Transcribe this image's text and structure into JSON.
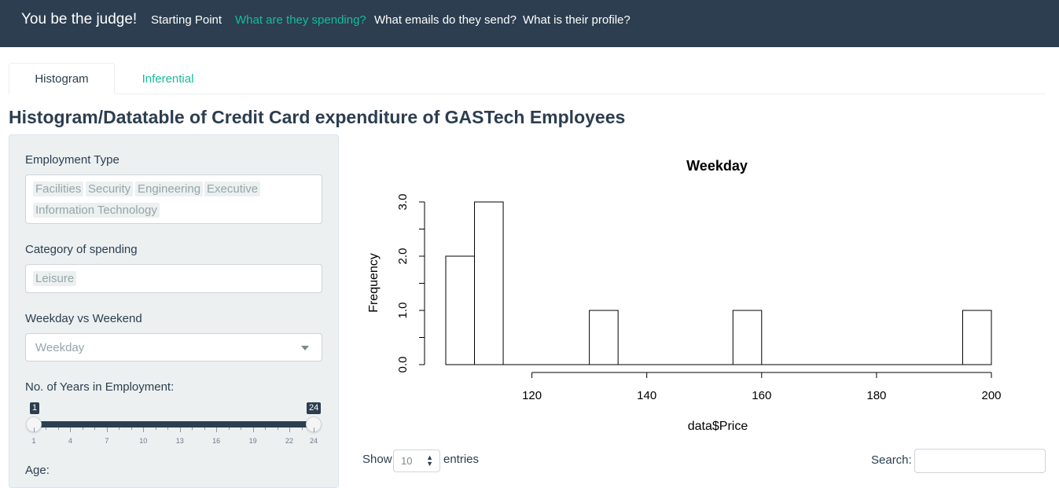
{
  "navbar": {
    "brand": "You be the judge!",
    "links": [
      "Starting Point",
      "What are they spending?",
      "What emails do they send?",
      "What is their profile?"
    ],
    "active_index": 1,
    "bg_color": "#2c3e50",
    "accent_color": "#18bc9c"
  },
  "tabs": [
    {
      "label": "Histogram",
      "active": true
    },
    {
      "label": "Inferential",
      "active": false
    }
  ],
  "page_title": "Histogram/Datatable of Credit Card expenditure of GASTech Employees",
  "sidebar": {
    "employment_type": {
      "label": "Employment Type",
      "selected": [
        "Facilities",
        "Security",
        "Engineering",
        "Executive",
        "Information Technology"
      ]
    },
    "category": {
      "label": "Category of spending",
      "selected": [
        "Leisure"
      ]
    },
    "weekday": {
      "label": "Weekday vs Weekend",
      "value": "Weekday"
    },
    "years": {
      "label": "No. of Years in Employment:",
      "min": 1,
      "max": 24,
      "low": 1,
      "high": 24,
      "low_label": "1",
      "high_label": "24",
      "ticks": [
        "1",
        "4",
        "7",
        "10",
        "13",
        "16",
        "19",
        "22",
        "24"
      ]
    },
    "age": {
      "label": "Age:"
    }
  },
  "chart_data": {
    "type": "bar",
    "title": "Weekday",
    "xlabel": "data$Price",
    "ylabel": "Frequency",
    "bins": [
      {
        "from": 105,
        "to": 110,
        "count": 2
      },
      {
        "from": 110,
        "to": 115,
        "count": 3
      },
      {
        "from": 115,
        "to": 130,
        "count": 0
      },
      {
        "from": 130,
        "to": 135,
        "count": 1
      },
      {
        "from": 135,
        "to": 155,
        "count": 0
      },
      {
        "from": 155,
        "to": 160,
        "count": 1
      },
      {
        "from": 160,
        "to": 195,
        "count": 0
      },
      {
        "from": 195,
        "to": 200,
        "count": 1
      }
    ],
    "xlim": [
      105,
      200
    ],
    "ylim": [
      0,
      3
    ],
    "x_ticks": [
      "120",
      "140",
      "160",
      "180",
      "200"
    ],
    "y_ticks": [
      "0.0",
      "1.0",
      "2.0",
      "3.0"
    ],
    "grid": false
  },
  "datatable": {
    "show_label": "Show",
    "page_length": "10",
    "entries_label": "entries",
    "search_label": "Search:",
    "search_value": ""
  }
}
